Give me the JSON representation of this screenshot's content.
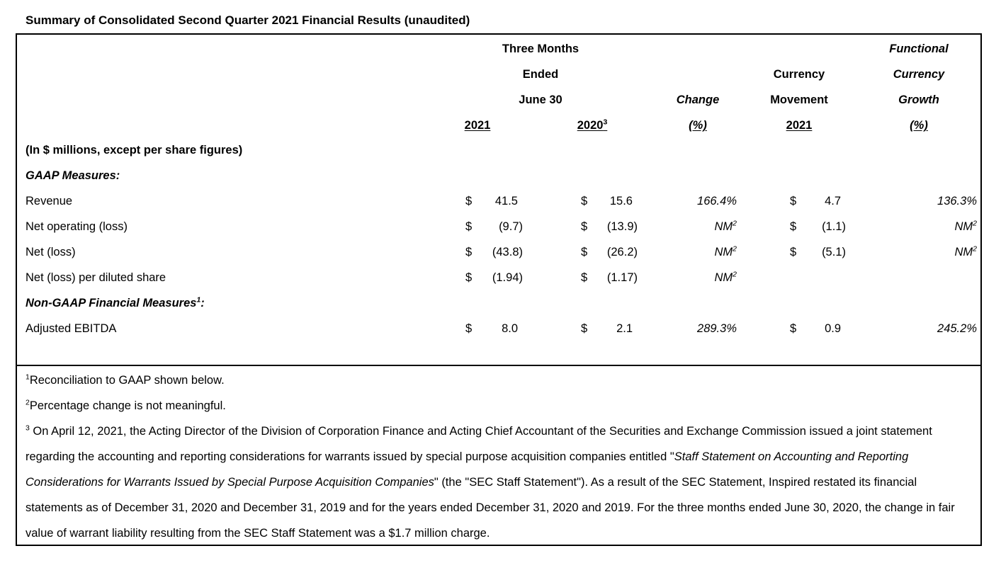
{
  "page": {
    "title": "Summary of Consolidated Second Quarter 2021 Financial Results (unaudited)",
    "text_color": "#000000",
    "background_color": "#ffffff"
  },
  "table": {
    "header": {
      "period": [
        "Three Months",
        "Ended",
        "June 30"
      ],
      "year_2021": "2021",
      "year_2020": "2020",
      "year_2020_sup": "3",
      "change_label": "Change",
      "change_pct": "(%)",
      "currency_movement": [
        "Currency",
        "Movement"
      ],
      "currency_movement_year": "2021",
      "functional": [
        "Functional",
        "Currency",
        "Growth"
      ],
      "functional_pct": "(%)"
    },
    "rows": [
      {
        "label": "(In $ millions, except per share figures)",
        "label_sup": "",
        "label_after": "",
        "label_style": "bold",
        "usd_2021": {
          "dollar": "",
          "value": ""
        },
        "usd_2020": {
          "dollar": "",
          "value": ""
        },
        "change": {
          "value": "",
          "sup": ""
        },
        "currency_movement": {
          "dollar": "",
          "value": ""
        },
        "functional_growth": {
          "value": "",
          "sup": ""
        }
      },
      {
        "label": "GAAP Measures:",
        "label_sup": "",
        "label_after": "",
        "label_style": "bolditalic",
        "usd_2021": {
          "dollar": "",
          "value": ""
        },
        "usd_2020": {
          "dollar": "",
          "value": ""
        },
        "change": {
          "value": "",
          "sup": ""
        },
        "currency_movement": {
          "dollar": "",
          "value": ""
        },
        "functional_growth": {
          "value": "",
          "sup": ""
        }
      },
      {
        "label": "Revenue",
        "label_sup": "",
        "label_after": "",
        "label_style": "normal",
        "usd_2021": {
          "dollar": "$",
          "value": "41.5"
        },
        "usd_2020": {
          "dollar": "$",
          "value": "15.6"
        },
        "change": {
          "value": "166.4%",
          "sup": ""
        },
        "currency_movement": {
          "dollar": "$",
          "value": "4.7"
        },
        "functional_growth": {
          "value": "136.3%",
          "sup": ""
        }
      },
      {
        "label": "Net operating (loss)",
        "label_sup": "",
        "label_after": "",
        "label_style": "normal",
        "usd_2021": {
          "dollar": "$",
          "value": "(9.7)"
        },
        "usd_2020": {
          "dollar": "$",
          "value": "(13.9)"
        },
        "change": {
          "value": "NM",
          "sup": "2"
        },
        "currency_movement": {
          "dollar": "$",
          "value": "(1.1)"
        },
        "functional_growth": {
          "value": "NM",
          "sup": "2"
        }
      },
      {
        "label": "Net (loss)",
        "label_sup": "",
        "label_after": "",
        "label_style": "normal",
        "usd_2021": {
          "dollar": "$",
          "value": "(43.8)"
        },
        "usd_2020": {
          "dollar": "$",
          "value": "(26.2)"
        },
        "change": {
          "value": "NM",
          "sup": "2"
        },
        "currency_movement": {
          "dollar": "$",
          "value": "(5.1)"
        },
        "functional_growth": {
          "value": "NM",
          "sup": "2"
        }
      },
      {
        "label": "Net (loss) per diluted share",
        "label_sup": "",
        "label_after": "",
        "label_style": "normal",
        "usd_2021": {
          "dollar": "$",
          "value": "(1.94)"
        },
        "usd_2020": {
          "dollar": "$",
          "value": "(1.17)"
        },
        "change": {
          "value": "NM",
          "sup": "2"
        },
        "currency_movement": {
          "dollar": "",
          "value": ""
        },
        "functional_growth": {
          "value": "",
          "sup": ""
        }
      },
      {
        "label": "Non-GAAP Financial Measures",
        "label_sup": "1",
        "label_after": ":",
        "label_style": "bolditalic",
        "usd_2021": {
          "dollar": "",
          "value": ""
        },
        "usd_2020": {
          "dollar": "",
          "value": ""
        },
        "change": {
          "value": "",
          "sup": ""
        },
        "currency_movement": {
          "dollar": "",
          "value": ""
        },
        "functional_growth": {
          "value": "",
          "sup": ""
        }
      },
      {
        "label": "Adjusted EBITDA",
        "label_sup": "",
        "label_after": "",
        "label_style": "normal",
        "usd_2021": {
          "dollar": "$",
          "value": "8.0"
        },
        "usd_2020": {
          "dollar": "$",
          "value": "2.1"
        },
        "change": {
          "value": "289.3%",
          "sup": ""
        },
        "currency_movement": {
          "dollar": "$",
          "value": "0.9"
        },
        "functional_growth": {
          "value": "245.2%",
          "sup": ""
        }
      }
    ]
  },
  "footnotes": [
    {
      "sup": "1",
      "segments": [
        {
          "text": "Reconciliation to GAAP shown below.",
          "italic": false
        }
      ]
    },
    {
      "sup": "2",
      "segments": [
        {
          "text": "Percentage change is not meaningful.",
          "italic": false
        }
      ]
    },
    {
      "sup": "3",
      "segments": [
        {
          "text": " On April 12, 2021, the Acting Director of the Division of Corporation Finance and Acting Chief Accountant of the Securities and Exchange Commission issued a joint statement regarding the accounting and reporting considerations for warrants issued by special purpose acquisition companies entitled \"",
          "italic": false
        },
        {
          "text": "Staff Statement on Accounting and Reporting Considerations for Warrants Issued by Special Purpose Acquisition Companies",
          "italic": true
        },
        {
          "text": "\" (the \"SEC Staff Statement\"). As a result of the SEC Statement, Inspired restated its financial statements as of December 31, 2020 and December 31, 2019 and for the years ended December 31, 2020 and 2019. For the three months ended June 30, 2020, the change in fair value of warrant liability resulting from the SEC Staff Statement was a $1.7 million charge.",
          "italic": false
        }
      ]
    }
  ]
}
